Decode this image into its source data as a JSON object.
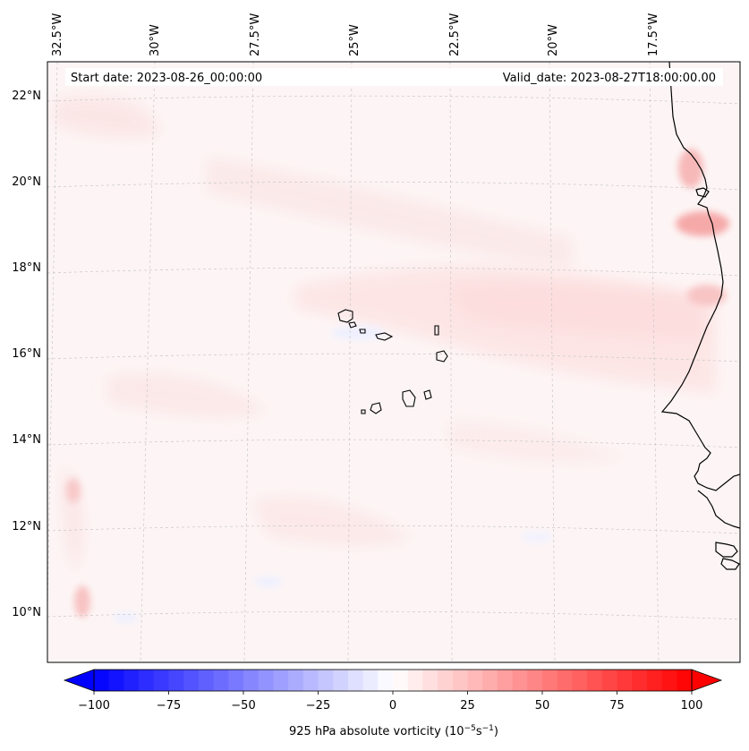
{
  "map": {
    "start_label": "Start date: 2023-08-26_00:00:00",
    "valid_label": "Valid_date: 2023-08-27T18:00:00.00",
    "lon_labels": [
      "32.5°W",
      "30°W",
      "27.5°W",
      "25°W",
      "22.5°W",
      "20°W",
      "17.5°W"
    ],
    "lat_labels": [
      "22°N",
      "20°N",
      "18°N",
      "16°N",
      "14°N",
      "12°N",
      "10°N"
    ]
  },
  "colorbar": {
    "label_prefix": "925 hPa absolute vorticity (10",
    "exp1": "−5",
    "mid": "s",
    "exp2": "−1",
    "suffix": ")",
    "ticks": [
      "−100",
      "−75",
      "−50",
      "−25",
      "0",
      "25",
      "50",
      "75",
      "100"
    ],
    "min_value": -100,
    "max_value": 100,
    "levels": 40,
    "neg_color": "#0000ff",
    "pos_color": "#ff0000"
  },
  "colors": {
    "background_field": "#fdf6f6",
    "coast": "#000000",
    "grid": "#cccccc"
  }
}
